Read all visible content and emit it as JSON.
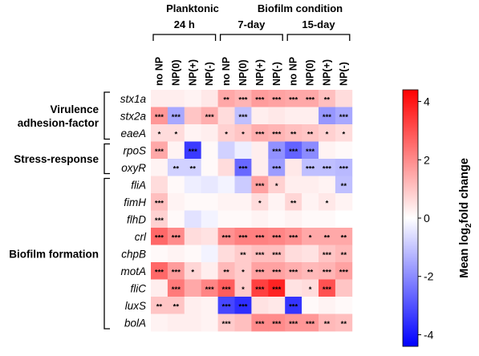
{
  "chart_data": {
    "type": "heatmap",
    "condition_headers": [
      {
        "label": "Planktonic"
      },
      {
        "label": "Biofilm condition"
      }
    ],
    "time_groups": [
      {
        "label": "24 h",
        "start": 0,
        "end": 3
      },
      {
        "label": "7-day",
        "start": 4,
        "end": 7
      },
      {
        "label": "15-day",
        "start": 8,
        "end": 11
      }
    ],
    "columns": [
      "no NP",
      "NP(0)",
      "NP(+)",
      "NP(-)",
      "no NP",
      "NP(0)",
      "NP(+)",
      "NP(-)",
      "no NP",
      "NP(0)",
      "NP(+)",
      "NP(-)"
    ],
    "rows": [
      "stx1a",
      "stx2a",
      "eaeA",
      "rpoS",
      "oxyR",
      "fliA",
      "fimH",
      "flhD",
      "crl",
      "chpB",
      "motA",
      "fliC",
      "luxS",
      "bolA"
    ],
    "row_groups": [
      {
        "lines": [
          "Virulence",
          "adhesion-factor"
        ],
        "start": 0,
        "end": 2
      },
      {
        "lines": [
          "Stress-response"
        ],
        "start": 3,
        "end": 4
      },
      {
        "lines": [
          "Biofilm formation"
        ],
        "start": 5,
        "end": 13
      }
    ],
    "values": [
      [
        0.3,
        0.3,
        0.2,
        0.4,
        1.5,
        1.3,
        1.7,
        1.6,
        1.5,
        1.5,
        1.1,
        0.6
      ],
      [
        1.8,
        -1.5,
        1.0,
        1.4,
        0.6,
        -1.1,
        0.3,
        0.4,
        0.3,
        0.3,
        -1.8,
        -1.5
      ],
      [
        0.6,
        0.6,
        0.2,
        0.3,
        0.8,
        1.0,
        1.4,
        1.3,
        1.1,
        1.0,
        0.8,
        0.6
      ],
      [
        1.5,
        0.2,
        -3.4,
        0.1,
        -0.8,
        -0.3,
        0.3,
        -1.9,
        -2.7,
        -2.0,
        0.2,
        0.1
      ],
      [
        0.2,
        -0.8,
        -0.8,
        0.1,
        0.6,
        -2.6,
        0.3,
        -1.7,
        0.4,
        -1.1,
        -1.1,
        -1.2
      ],
      [
        0.6,
        0.1,
        -0.3,
        -0.4,
        -0.2,
        -0.9,
        1.6,
        0.8,
        0.3,
        0.3,
        0.2,
        -1.1
      ],
      [
        1.1,
        0.2,
        0.1,
        0.1,
        0.2,
        0.2,
        0.6,
        0.2,
        0.7,
        0.2,
        0.4,
        0.2
      ],
      [
        0.8,
        0.1,
        -0.5,
        -0.2,
        0.1,
        0.1,
        0.2,
        0.1,
        0.2,
        0.1,
        0.1,
        0.0
      ],
      [
        2.6,
        2.0,
        0.6,
        0.5,
        1.9,
        2.2,
        2.2,
        2.1,
        1.9,
        1.5,
        1.5,
        1.5
      ],
      [
        0.1,
        0.2,
        0.1,
        -0.2,
        0.6,
        0.9,
        1.1,
        1.1,
        0.6,
        0.5,
        1.0,
        1.2
      ],
      [
        2.6,
        1.7,
        0.7,
        0.3,
        1.2,
        0.9,
        1.6,
        1.6,
        1.4,
        1.2,
        1.3,
        1.6
      ],
      [
        0.3,
        2.3,
        1.5,
        2.1,
        2.8,
        0.9,
        3.3,
        3.8,
        0.5,
        0.6,
        3.0,
        1.0
      ],
      [
        1.0,
        1.0,
        0.3,
        0.2,
        -3.2,
        -3.6,
        0.5,
        0.4,
        -3.5,
        0.1,
        0.2,
        0.1
      ],
      [
        0.2,
        0.3,
        0.3,
        0.2,
        0.9,
        1.1,
        2.0,
        2.0,
        1.8,
        1.8,
        1.2,
        1.1
      ]
    ],
    "significance": [
      [
        "",
        "",
        "",
        "",
        "**",
        "***",
        "***",
        "***",
        "***",
        "***",
        "**",
        ""
      ],
      [
        "***",
        "***",
        "",
        "***",
        "",
        "***",
        "",
        "",
        "",
        "",
        "***",
        "***"
      ],
      [
        "*",
        "*",
        "",
        "",
        "*",
        "*",
        "***",
        "***",
        "**",
        "**",
        "*",
        "*"
      ],
      [
        "***",
        "",
        "***",
        "",
        "",
        "",
        "",
        "***",
        "***",
        "***",
        "",
        ""
      ],
      [
        "",
        "**",
        "**",
        "",
        "",
        "***",
        "",
        "***",
        "",
        "***",
        "***",
        "***"
      ],
      [
        "",
        "",
        "",
        "",
        "",
        "",
        "***",
        "*",
        "",
        "",
        "",
        "**"
      ],
      [
        "***",
        "",
        "",
        "",
        "",
        "",
        "*",
        "",
        "**",
        "",
        "*",
        ""
      ],
      [
        "***",
        "",
        "",
        "",
        "",
        "",
        "",
        "",
        "",
        "",
        "",
        ""
      ],
      [
        "***",
        "***",
        "",
        "",
        "***",
        "***",
        "***",
        "***",
        "***",
        "*",
        "**",
        "**"
      ],
      [
        "",
        "",
        "",
        "",
        "",
        "**",
        "***",
        "***",
        "",
        "",
        "***",
        "**"
      ],
      [
        "***",
        "***",
        "*",
        "",
        "**",
        "*",
        "***",
        "***",
        "***",
        "**",
        "***",
        "***"
      ],
      [
        "",
        "***",
        "",
        "***",
        "***",
        "*",
        "***",
        "***",
        "",
        "*",
        "***",
        ""
      ],
      [
        "**",
        "**",
        "",
        "",
        "***",
        "***",
        "",
        "",
        "***",
        "",
        "",
        ""
      ],
      [
        "",
        "",
        "",
        "",
        "***",
        "",
        "***",
        "***",
        "***",
        "***",
        "**",
        "**"
      ]
    ],
    "colorbar": {
      "label_main": "Mean log",
      "label_sub": "2",
      "label_tail": "fold change",
      "vmin": -4.4,
      "vmax": 4.4,
      "ticks": [
        4,
        2,
        0,
        -2,
        -4
      ],
      "colors": {
        "low": "#0000ff",
        "mid": "#ffffff",
        "high": "#ff0000"
      }
    }
  }
}
